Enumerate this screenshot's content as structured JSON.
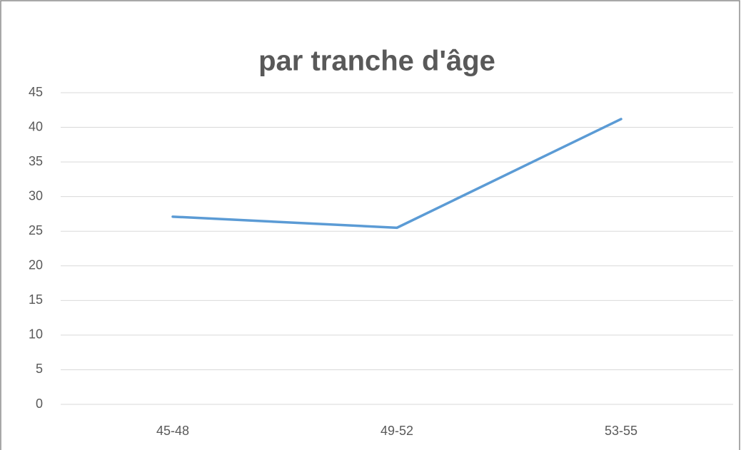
{
  "chart_data": {
    "type": "line",
    "title": "par tranche d'âge",
    "categories": [
      "45-48",
      "49-52",
      "53-55"
    ],
    "series": [
      {
        "name": "par tranche d'âge",
        "color": "#5b9bd5",
        "values": [
          27.1,
          25.5,
          41.2
        ]
      }
    ],
    "ylim": [
      0,
      45
    ],
    "yticks": [
      0,
      5,
      10,
      15,
      20,
      25,
      30,
      35,
      40,
      45
    ],
    "grid": true
  }
}
